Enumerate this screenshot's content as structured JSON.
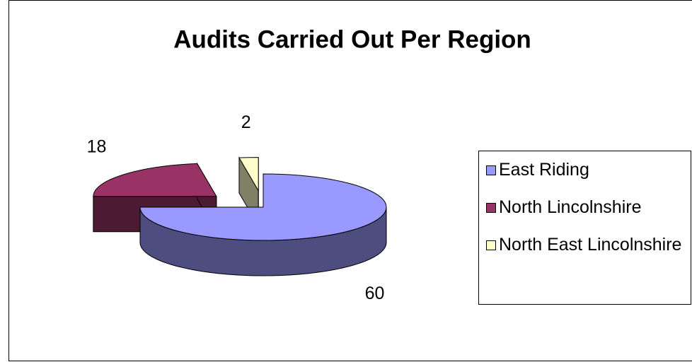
{
  "chart_data": {
    "type": "pie",
    "title": "Audits Carried Out Per Region",
    "categories": [
      "East Riding",
      "North Lincolnshire",
      "North East Lincolnshire"
    ],
    "values": [
      60,
      18,
      2
    ],
    "colors": [
      "#9999FF",
      "#993366",
      "#FFFFCC"
    ],
    "legend": "right"
  }
}
